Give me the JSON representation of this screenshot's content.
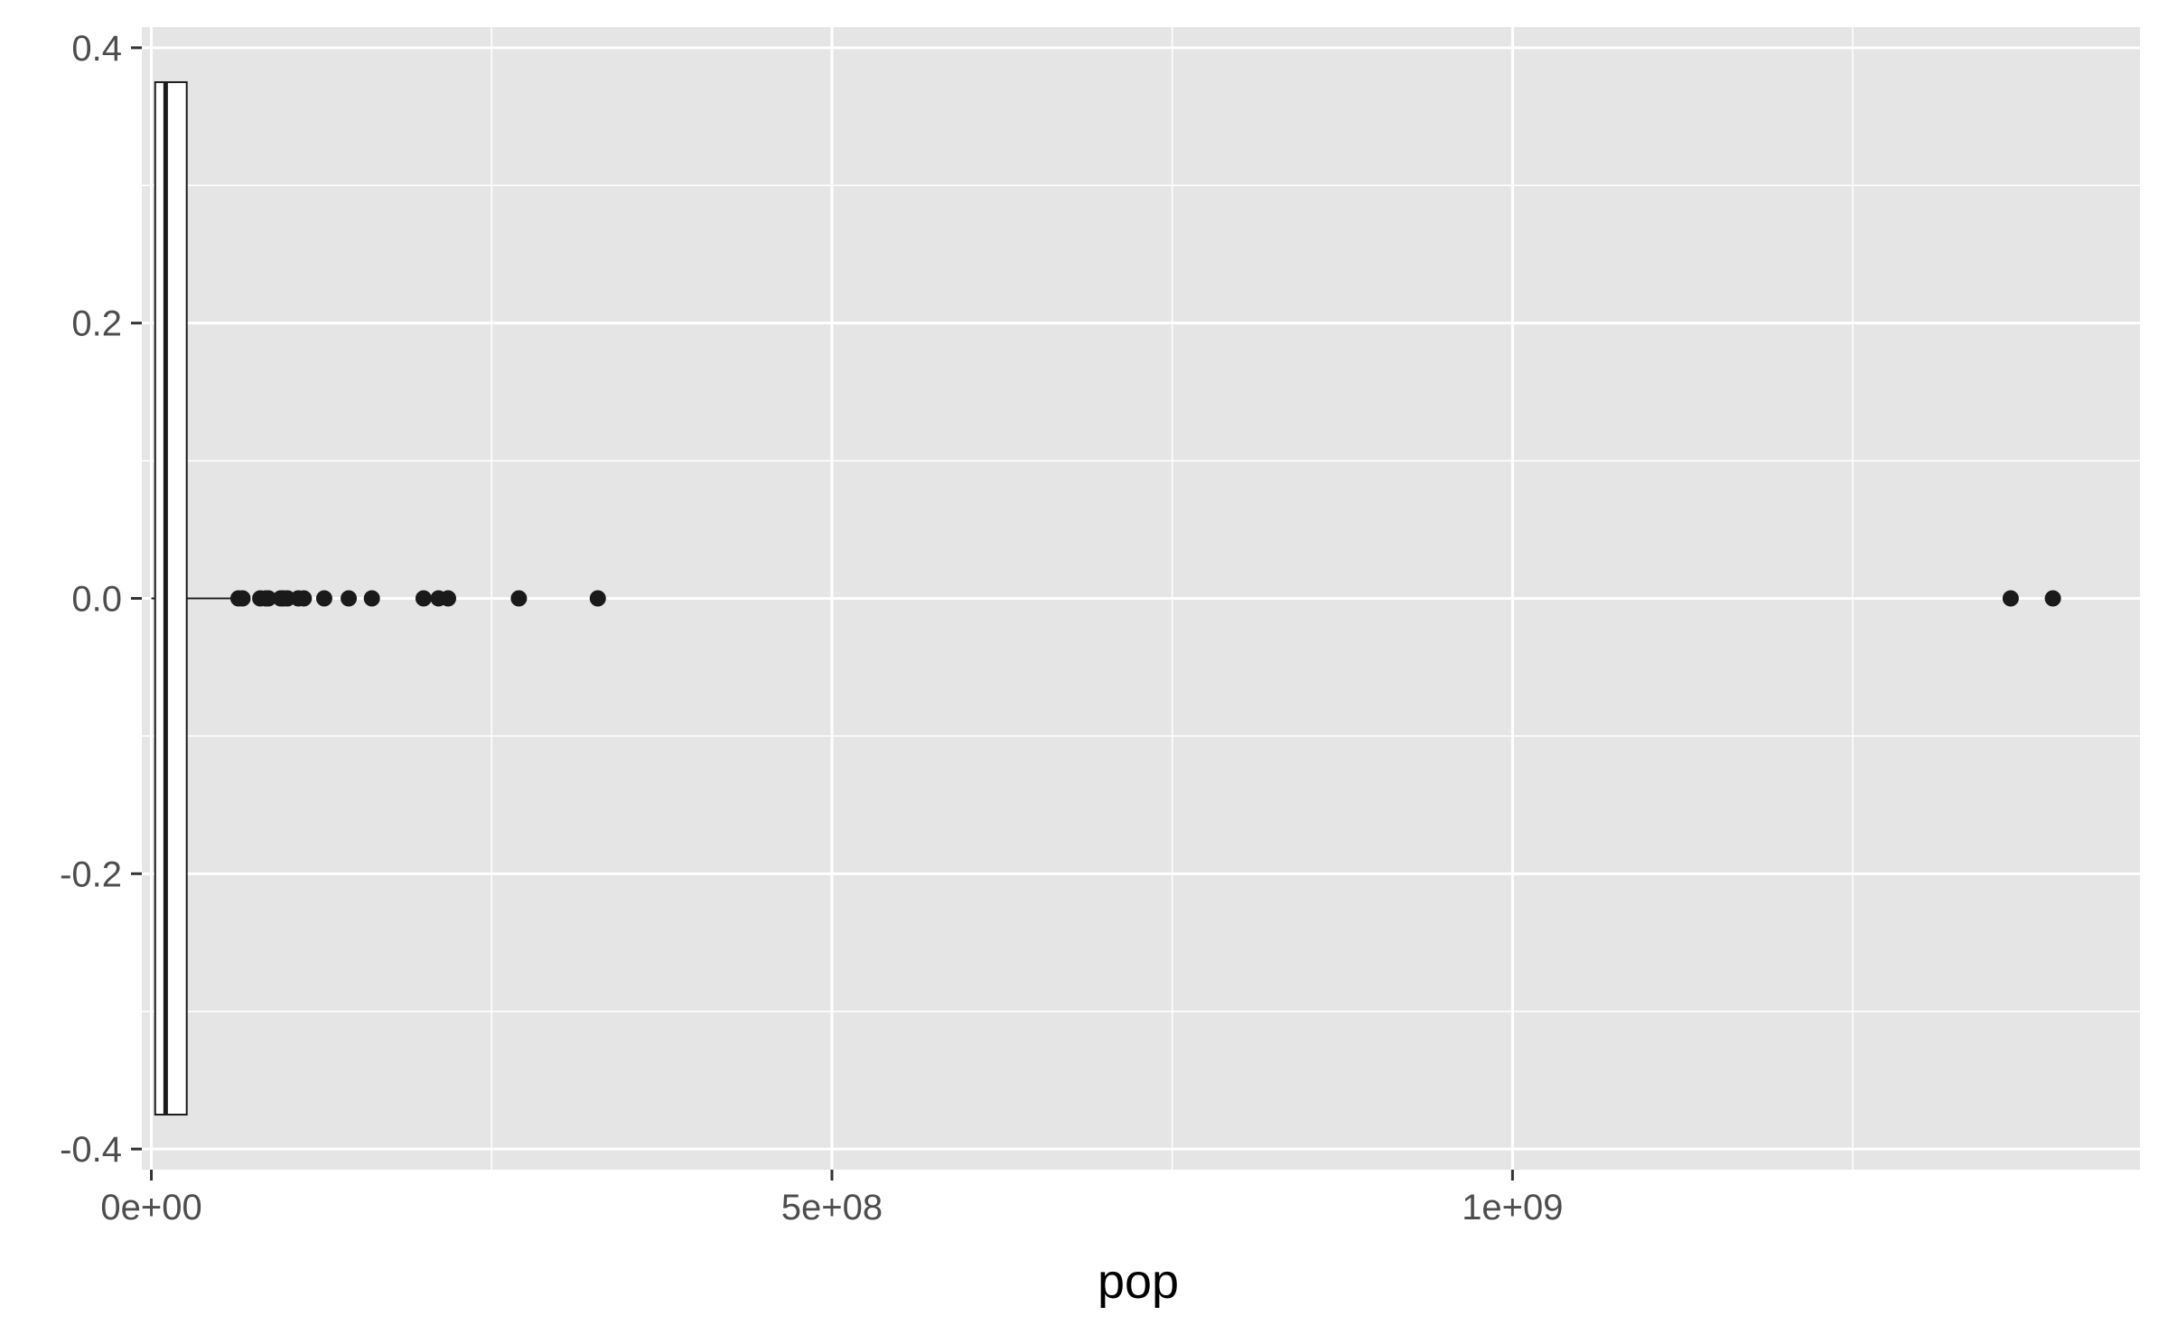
{
  "chart_data": {
    "type": "boxplot",
    "orientation": "horizontal",
    "title": "",
    "xlabel": "pop",
    "ylabel": "",
    "xlim": [
      -7000000,
      1461000000
    ],
    "ylim": [
      -0.415,
      0.415
    ],
    "x_ticks": [
      {
        "value": 0,
        "label": "0e+00"
      },
      {
        "value": 500000000,
        "label": "5e+08"
      },
      {
        "value": 1000000000,
        "label": "1e+09"
      }
    ],
    "x_minor_ticks": [
      250000000,
      750000000,
      1250000000
    ],
    "y_ticks": [
      {
        "value": 0.4,
        "label": "0.4"
      },
      {
        "value": 0.2,
        "label": "0.2"
      },
      {
        "value": 0.0,
        "label": "0.0"
      },
      {
        "value": -0.2,
        "label": "-0.2"
      },
      {
        "value": -0.4,
        "label": "-0.4"
      }
    ],
    "y_minor_ticks": [
      0.3,
      0.1,
      -0.1,
      -0.3
    ],
    "box": {
      "lower_whisker": 60000,
      "q1": 2800000,
      "median": 10500000,
      "q3": 26000000,
      "upper whisker": 61000000,
      "y_center": 0.0,
      "half_width": 0.375
    },
    "outliers": [
      64000000,
      67000000,
      80000000,
      84000000,
      86000000,
      95000000,
      97000000,
      100000000,
      108000000,
      112000000,
      127000000,
      145000000,
      162000000,
      200000000,
      211000000,
      218000000,
      270000000,
      328000000,
      1366000000,
      1397000000
    ],
    "grid": true,
    "legend": "none",
    "colors": {
      "panel_background": "#e5e5e5",
      "grid_line": "#ffffff",
      "box_fill": "#ffffff",
      "box_stroke": "#1a1a1a",
      "point": "#1a1a1a",
      "tick_label": "#4d4d4d",
      "axis_title": "#000000"
    }
  }
}
